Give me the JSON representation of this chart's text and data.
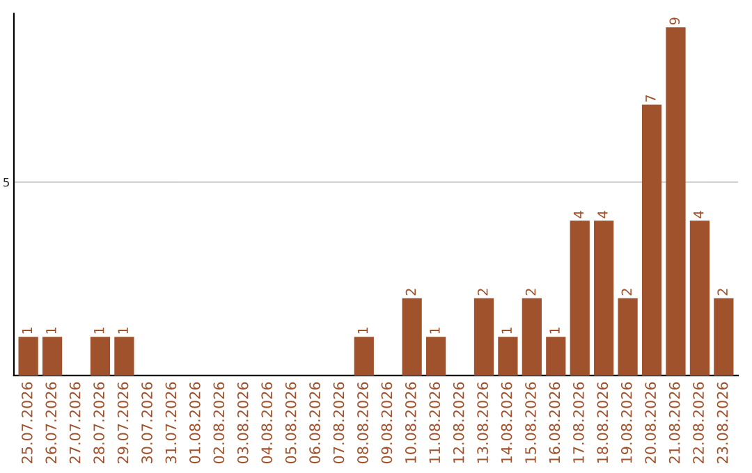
{
  "chart_data": {
    "type": "bar",
    "categories": [
      "25.07.2026",
      "26.07.2026",
      "27.07.2026",
      "28.07.2026",
      "29.07.2026",
      "30.07.2026",
      "31.07.2026",
      "01.08.2026",
      "02.08.2026",
      "03.08.2026",
      "04.08.2026",
      "05.08.2026",
      "06.08.2026",
      "07.08.2026",
      "08.08.2026",
      "09.08.2026",
      "10.08.2026",
      "11.08.2026",
      "12.08.2026",
      "13.08.2026",
      "14.08.2026",
      "15.08.2026",
      "16.08.2026",
      "17.08.2026",
      "18.08.2026",
      "19.08.2026",
      "20.08.2026",
      "21.08.2026",
      "22.08.2026",
      "23.08.2026"
    ],
    "values": [
      1,
      1,
      0,
      1,
      1,
      0,
      0,
      0,
      0,
      0,
      0,
      0,
      0,
      0,
      1,
      0,
      2,
      1,
      0,
      2,
      1,
      2,
      1,
      4,
      4,
      2,
      7,
      9,
      4,
      2
    ],
    "value_labels": [
      "1",
      "1",
      null,
      "1",
      "1",
      null,
      null,
      null,
      null,
      null,
      null,
      null,
      null,
      null,
      "1",
      null,
      "2",
      "1",
      null,
      "2",
      "1",
      "2",
      "1",
      "4",
      "4",
      "2",
      "7",
      "9",
      "4",
      "2"
    ],
    "color": "#a0522d",
    "ylim": [
      0,
      9.35
    ],
    "yticks": [
      5
    ],
    "grid": "y"
  }
}
